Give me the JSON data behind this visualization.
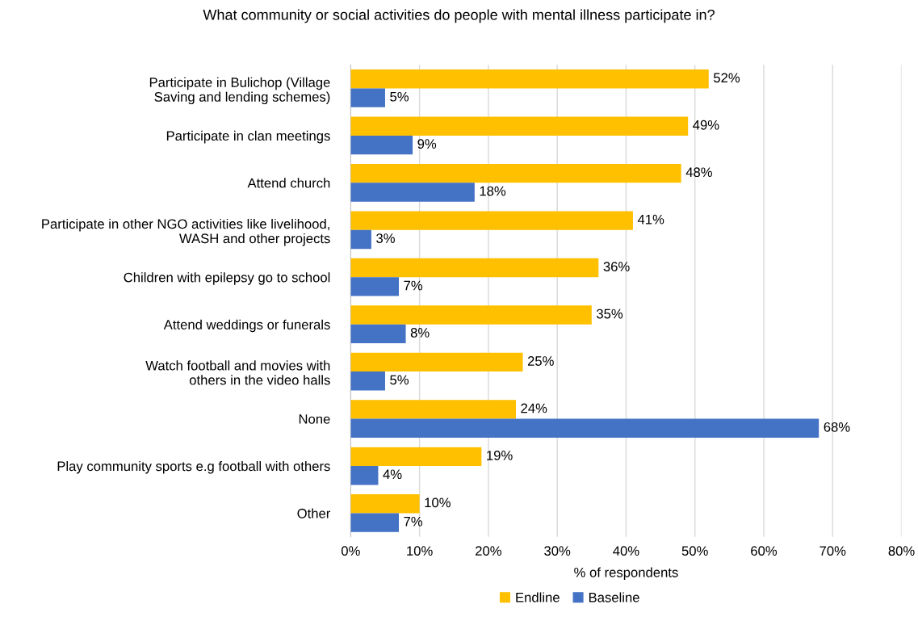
{
  "chart_data": {
    "type": "bar",
    "orientation": "horizontal",
    "title": "What community or social activities do people with mental illness participate in?",
    "xlabel": "% of respondents",
    "categories": [
      "Participate in Bulichop (Village\nSaving and lending schemes)",
      "Participate in clan meetings",
      "Attend church",
      "Participate in other NGO activities like livelihood,\nWASH and other projects",
      "Children with epilepsy go to school",
      "Attend weddings or funerals",
      "Watch football and movies with\nothers in the video halls",
      "None",
      "Play community sports e.g football with others",
      "Other"
    ],
    "series": [
      {
        "name": "Endline",
        "color": "#ffc000",
        "values": [
          52,
          49,
          48,
          41,
          36,
          35,
          25,
          24,
          19,
          10
        ],
        "value_labels": [
          "52%",
          "49%",
          "48%",
          "41%",
          "36%",
          "35%",
          "25%",
          "24%",
          "19%",
          "10%"
        ]
      },
      {
        "name": "Baseline",
        "color": "#4472c4",
        "values": [
          5,
          9,
          18,
          3,
          7,
          8,
          5,
          68,
          4,
          7
        ],
        "value_labels": [
          "5%",
          "9%",
          "18%",
          "3%",
          "7%",
          "8%",
          "5%",
          "68%",
          "4%",
          "7%"
        ]
      }
    ],
    "xlim": [
      0,
      80
    ],
    "xticks": [
      {
        "value": 0,
        "label": "0%"
      },
      {
        "value": 10,
        "label": "10%"
      },
      {
        "value": 20,
        "label": "20%"
      },
      {
        "value": 30,
        "label": "30%"
      },
      {
        "value": 40,
        "label": "40%"
      },
      {
        "value": 50,
        "label": "50%"
      },
      {
        "value": 60,
        "label": "60%"
      },
      {
        "value": 70,
        "label": "70%"
      },
      {
        "value": 80,
        "label": "80%"
      }
    ],
    "grid": "x",
    "legend": "bottom"
  }
}
